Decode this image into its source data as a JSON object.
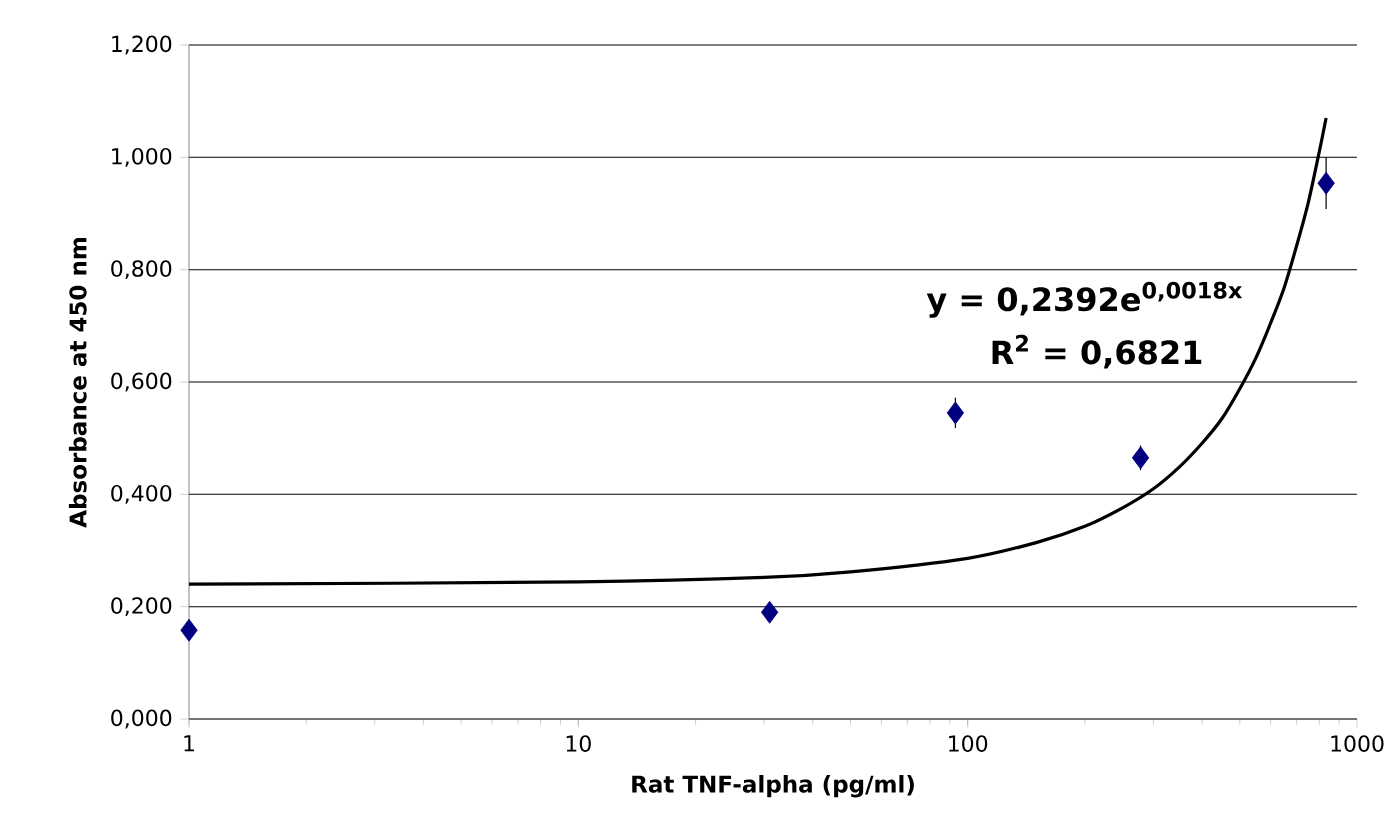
{
  "chart_data": {
    "type": "scatter",
    "xlabel": "Rat TNF-alpha (pg/ml)",
    "ylabel": "Absorbance at 450 nm",
    "log": "x",
    "xlim": [
      1,
      1000
    ],
    "ylim": [
      0,
      1.2
    ],
    "xticks": [
      1,
      10,
      100,
      1000
    ],
    "yticks": [
      {
        "value": 0,
        "label": "0,000"
      },
      {
        "value": 0.2,
        "label": "0,200"
      },
      {
        "value": 0.4,
        "label": "0,400"
      },
      {
        "value": 0.6,
        "label": "0,600"
      },
      {
        "value": 0.8,
        "label": "0,800"
      },
      {
        "value": 1.0,
        "label": "1,000"
      },
      {
        "value": 1.2,
        "label": "1,200"
      }
    ],
    "grid": "y",
    "series": [
      {
        "type": "scatter",
        "marker": "diamond",
        "color": "#000080",
        "x": [
          1,
          31,
          93,
          278,
          833
        ],
        "values": [
          0.158,
          0.19,
          0.545,
          0.465,
          0.954
        ],
        "errors": [
          null,
          null,
          0.027,
          0.022,
          0.046
        ]
      },
      {
        "type": "line",
        "color": "#000000",
        "x": [
          1,
          10,
          30,
          50,
          100,
          150,
          200,
          250,
          300,
          350,
          400,
          450,
          500,
          550,
          600,
          650,
          700,
          750,
          800,
          833
        ],
        "values": [
          0.24,
          0.244,
          0.252,
          0.262,
          0.286,
          0.314,
          0.343,
          0.376,
          0.41,
          0.449,
          0.491,
          0.535,
          0.588,
          0.643,
          0.705,
          0.768,
          0.843,
          0.92,
          1.01,
          1.07
        ]
      }
    ],
    "annotations": [
      "y = 0,2392e$^{0,0018x}$",
      "R$^{2}$ = 0,6821"
    ]
  }
}
